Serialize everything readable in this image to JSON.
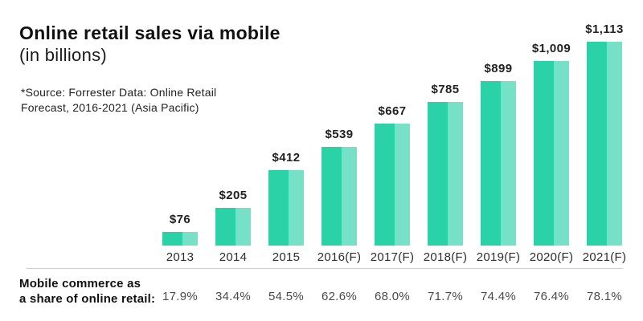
{
  "header": {
    "title": "Online retail sales via mobile",
    "subtitle": "(in billions)",
    "source_line1": "*Source: Forrester Data: Online Retail",
    "source_line2": "Forecast, 2016-2021 (Asia Pacific)"
  },
  "colors": {
    "bar_dark": "#2bd2a7",
    "bar_light": "#76e1c7",
    "divider": "#cccccc"
  },
  "chart_data": {
    "type": "bar",
    "title": "Online retail sales via mobile (in billions)",
    "categories": [
      "2013",
      "2014",
      "2015",
      "2016(F)",
      "2017(F)",
      "2018(F)",
      "2019(F)",
      "2020(F)",
      "2021(F)"
    ],
    "values": [
      76,
      205,
      412,
      539,
      667,
      785,
      899,
      1009,
      1113
    ],
    "value_labels": [
      "$76",
      "$205",
      "$412",
      "$539",
      "$667",
      "$785",
      "$899",
      "$1,009",
      "$1,113"
    ],
    "ylim": [
      0,
      1113
    ],
    "grid": false,
    "legend": false,
    "share_series": {
      "name": "Mobile commerce as a share of online retail",
      "values_pct": [
        17.9,
        34.4,
        54.5,
        62.6,
        68.0,
        71.7,
        74.4,
        76.4,
        78.1
      ],
      "value_labels": [
        "17.9%",
        "34.4%",
        "54.5%",
        "62.6%",
        "68.0%",
        "71.7%",
        "74.4%",
        "76.4%",
        "78.1%"
      ]
    }
  },
  "footer": {
    "label_line1": "Mobile commerce as",
    "label_line2": "a share of online retail:"
  }
}
